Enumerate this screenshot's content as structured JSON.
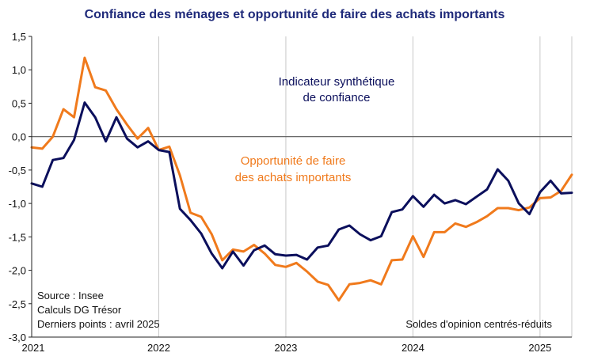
{
  "chart_data": {
    "type": "line",
    "title": "Confiance des ménages et opportunité de faire des achats importants",
    "ylim": [
      -3.0,
      1.5
    ],
    "yticks": [
      1.5,
      1.0,
      0.5,
      0.0,
      -0.5,
      -1.0,
      -1.5,
      -2.0,
      -2.5,
      -3.0
    ],
    "ytick_labels": [
      "1,5",
      "1,0",
      "0,5",
      "0,0",
      "-0,5",
      "-1,0",
      "-1,5",
      "-2,0",
      "-2,5",
      "-3,0"
    ],
    "xticks": [
      "2021",
      "2022",
      "2023",
      "2024",
      "2025"
    ],
    "grid": "vertical",
    "series": [
      {
        "name": "Indicateur synthétique de confiance",
        "color": "#0b0f5c",
        "values": [
          -0.7,
          -0.75,
          -0.35,
          -0.32,
          -0.05,
          0.51,
          0.29,
          -0.07,
          0.29,
          -0.03,
          -0.16,
          -0.07,
          -0.2,
          -0.23,
          -1.08,
          -1.25,
          -1.45,
          -1.75,
          -1.97,
          -1.72,
          -1.93,
          -1.7,
          -1.63,
          -1.76,
          -1.78,
          -1.77,
          -1.84,
          -1.66,
          -1.63,
          -1.39,
          -1.33,
          -1.46,
          -1.55,
          -1.49,
          -1.13,
          -1.09,
          -0.89,
          -1.05,
          -0.87,
          -1.0,
          -0.95,
          -1.01,
          -0.9,
          -0.79,
          -0.49,
          -0.66,
          -1.0,
          -1.16,
          -0.83,
          -0.66,
          -0.85,
          -0.84
        ]
      },
      {
        "name": "Opportunité de faire des achats importants",
        "color": "#f07a1c",
        "values": [
          -0.16,
          -0.18,
          0.0,
          0.41,
          0.29,
          1.18,
          0.74,
          0.69,
          0.41,
          0.18,
          -0.03,
          0.13,
          -0.2,
          -0.15,
          -0.58,
          -1.14,
          -1.2,
          -1.46,
          -1.85,
          -1.69,
          -1.72,
          -1.62,
          -1.75,
          -1.92,
          -1.95,
          -1.89,
          -2.02,
          -2.17,
          -2.22,
          -2.45,
          -2.21,
          -2.19,
          -2.15,
          -2.21,
          -1.85,
          -1.84,
          -1.49,
          -1.8,
          -1.43,
          -1.43,
          -1.3,
          -1.35,
          -1.28,
          -1.19,
          -1.07,
          -1.07,
          -1.1,
          -1.06,
          -0.92,
          -0.91,
          -0.81,
          -0.57
        ]
      }
    ]
  },
  "annotations": {
    "conf_line1": "Indicateur synthétique",
    "conf_line2": "de confiance",
    "opp_line1": "Opportunité de faire",
    "opp_line2": "des achats importants"
  },
  "notes": {
    "source": "Source : Insee",
    "calc": "Calculs DG Trésor",
    "last": "Derniers points : avril 2025",
    "right": "Soldes d'opinion centrés-réduits"
  }
}
